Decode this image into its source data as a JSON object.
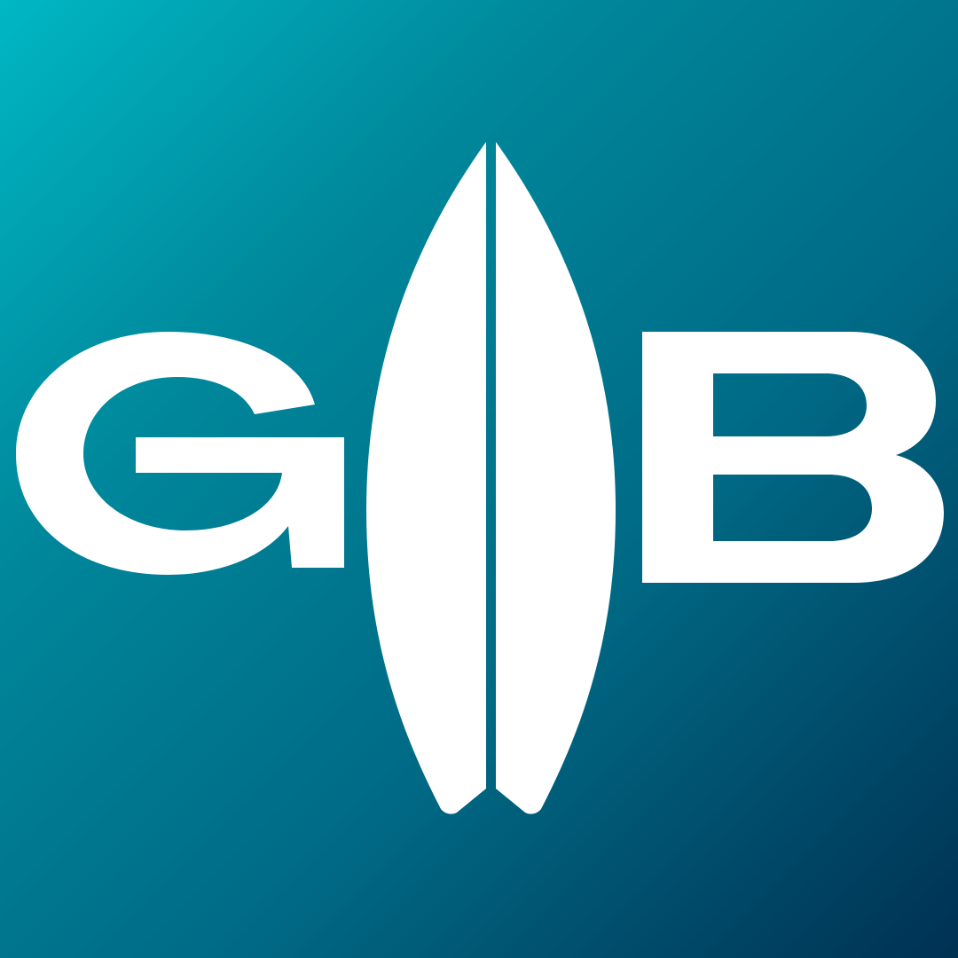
{
  "logo": {
    "letters": "GB",
    "icon": "surfboard-icon",
    "colors": {
      "gradient_start": "#00b7c3",
      "gradient_mid": "#00879b",
      "gradient_end": "#003153",
      "mark": "#ffffff"
    }
  }
}
